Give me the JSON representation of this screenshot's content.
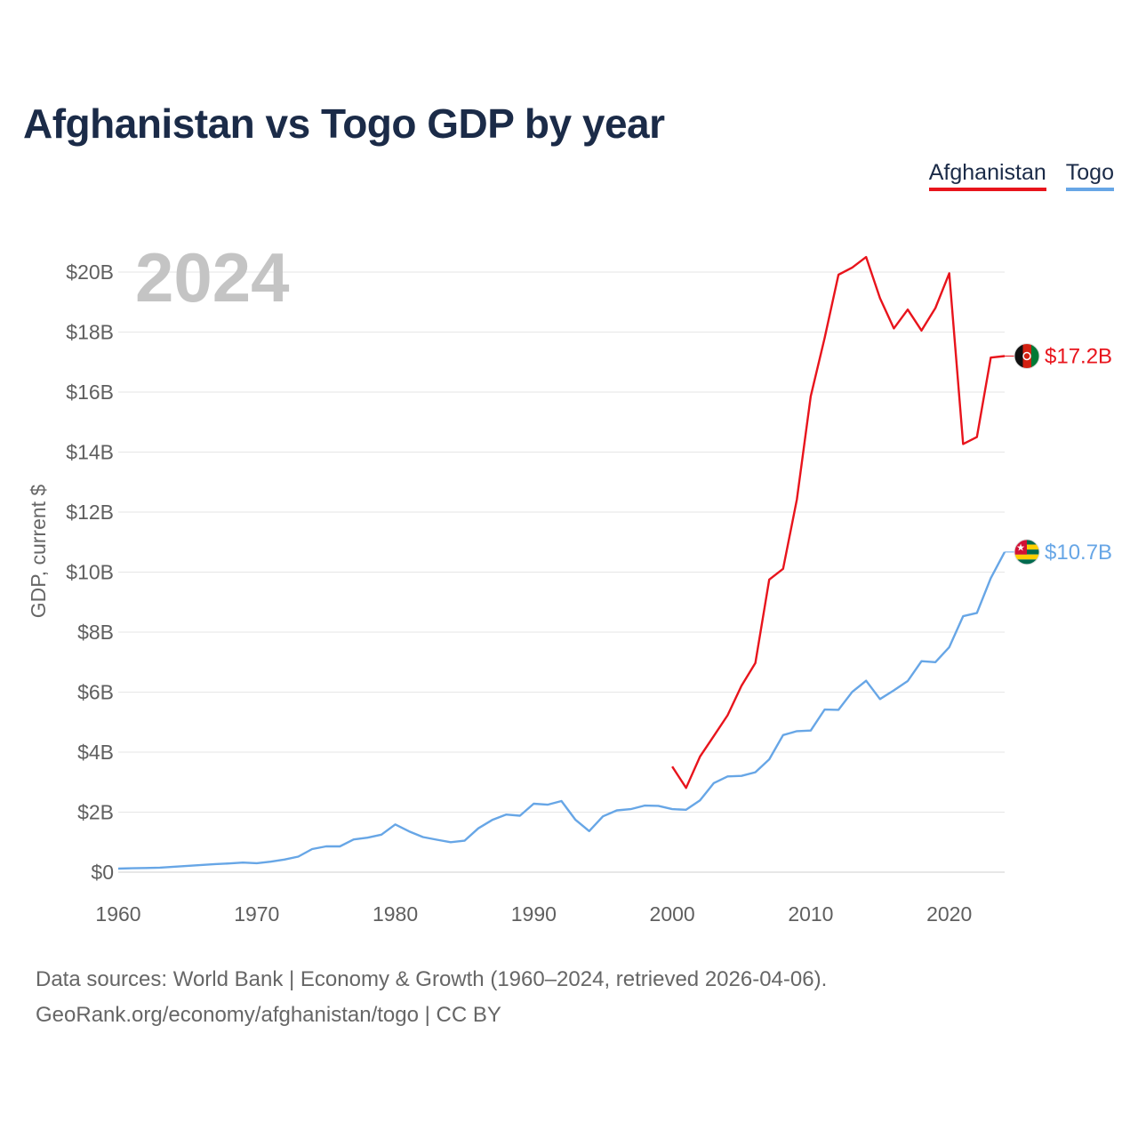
{
  "title": "Afghanistan vs Togo GDP by year",
  "legend": [
    {
      "name": "Afghanistan",
      "color": "#e8141c"
    },
    {
      "name": "Togo",
      "color": "#67a6e6"
    }
  ],
  "year_label": "2024",
  "footer": {
    "line1": "Data sources: World Bank | Economy & Growth (1960–2024, retrieved 2026-04-06).",
    "line2": "GeoRank.org/economy/afghanistan/togo | CC BY"
  },
  "chart_data": {
    "type": "line",
    "title": "Afghanistan vs Togo GDP by year",
    "xlabel": "",
    "ylabel": "GDP, current $",
    "xlim": [
      1960,
      2024
    ],
    "ylim": [
      0,
      20
    ],
    "x_ticks": [
      1960,
      1970,
      1980,
      1990,
      2000,
      2010,
      2020
    ],
    "y_ticks": [
      {
        "value": 0,
        "label": "$0"
      },
      {
        "value": 2,
        "label": "$2B"
      },
      {
        "value": 4,
        "label": "$4B"
      },
      {
        "value": 6,
        "label": "$6B"
      },
      {
        "value": 8,
        "label": "$8B"
      },
      {
        "value": 10,
        "label": "$10B"
      },
      {
        "value": 12,
        "label": "$12B"
      },
      {
        "value": 14,
        "label": "$14B"
      },
      {
        "value": 16,
        "label": "$16B"
      },
      {
        "value": 18,
        "label": "$18B"
      },
      {
        "value": 20,
        "label": "$20B"
      }
    ],
    "grid": true,
    "legend_position": "top-right",
    "units": "billions of current US$",
    "series": [
      {
        "name": "Afghanistan",
        "color": "#e8141c",
        "end_label": "$17.2B",
        "flag_icon": "afghanistan-flag-icon",
        "x": [
          2000,
          2001,
          2002,
          2003,
          2004,
          2005,
          2006,
          2007,
          2008,
          2009,
          2010,
          2011,
          2012,
          2013,
          2014,
          2015,
          2016,
          2017,
          2018,
          2019,
          2020,
          2021,
          2022,
          2023,
          2024
        ],
        "values": [
          3.52,
          2.81,
          3.85,
          4.54,
          5.23,
          6.21,
          6.97,
          9.75,
          10.11,
          12.42,
          15.86,
          17.8,
          19.91,
          20.15,
          20.5,
          19.13,
          18.12,
          18.75,
          18.05,
          18.8,
          19.96,
          14.27,
          14.5,
          17.15,
          17.2
        ]
      },
      {
        "name": "Togo",
        "color": "#67a6e6",
        "end_label": "$10.7B",
        "flag_icon": "togo-flag-icon",
        "x": [
          1960,
          1961,
          1962,
          1963,
          1964,
          1965,
          1966,
          1967,
          1968,
          1969,
          1970,
          1971,
          1972,
          1973,
          1974,
          1975,
          1976,
          1977,
          1978,
          1979,
          1980,
          1981,
          1982,
          1983,
          1984,
          1985,
          1986,
          1987,
          1988,
          1989,
          1990,
          1991,
          1992,
          1993,
          1994,
          1995,
          1996,
          1997,
          1998,
          1999,
          2000,
          2001,
          2002,
          2003,
          2004,
          2005,
          2006,
          2007,
          2008,
          2009,
          2010,
          2011,
          2012,
          2013,
          2014,
          2015,
          2016,
          2017,
          2018,
          2019,
          2020,
          2021,
          2022,
          2023,
          2024
        ],
        "values": [
          0.12,
          0.13,
          0.14,
          0.15,
          0.18,
          0.21,
          0.24,
          0.27,
          0.29,
          0.32,
          0.3,
          0.35,
          0.42,
          0.52,
          0.77,
          0.86,
          0.86,
          1.09,
          1.15,
          1.25,
          1.59,
          1.36,
          1.17,
          1.08,
          1.0,
          1.05,
          1.46,
          1.74,
          1.92,
          1.88,
          2.28,
          2.25,
          2.37,
          1.75,
          1.37,
          1.86,
          2.06,
          2.1,
          2.22,
          2.21,
          2.1,
          2.08,
          2.39,
          2.97,
          3.19,
          3.21,
          3.33,
          3.76,
          4.57,
          4.7,
          4.72,
          5.42,
          5.41,
          6.01,
          6.38,
          5.77,
          6.06,
          6.37,
          7.03,
          7.0,
          7.5,
          8.53,
          8.64,
          9.8,
          10.67
        ]
      }
    ]
  }
}
